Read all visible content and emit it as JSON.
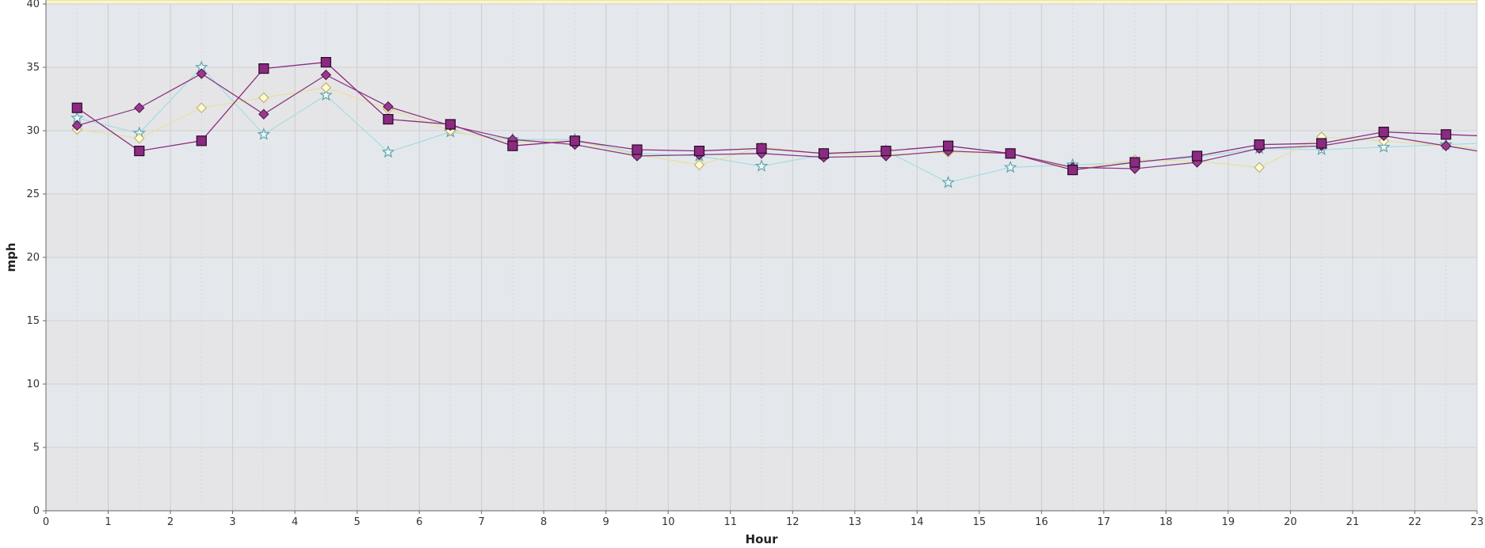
{
  "chart_data": {
    "type": "line",
    "title": "",
    "xlabel": "Hour",
    "ylabel": "mph",
    "xlim": [
      0,
      23
    ],
    "ylim": [
      0,
      40
    ],
    "x_ticks": [
      0,
      1,
      2,
      3,
      4,
      5,
      6,
      7,
      8,
      9,
      10,
      11,
      12,
      13,
      14,
      15,
      16,
      17,
      18,
      19,
      20,
      21,
      22,
      23
    ],
    "y_ticks": [
      0,
      5,
      10,
      15,
      20,
      25,
      30,
      35,
      40
    ],
    "grid": true,
    "x": [
      0.5,
      1.5,
      2.5,
      3.5,
      4.5,
      5.5,
      6.5,
      7.5,
      8.5,
      9.5,
      10.5,
      11.5,
      12.5,
      13.5,
      14.5,
      15.5,
      16.5,
      17.5,
      18.5,
      19.5,
      20.5,
      21.5,
      22.5
    ],
    "series": [
      {
        "marker": "star",
        "color": "#7fbcc4",
        "values": [
          31.0,
          29.8,
          35.0,
          29.7,
          32.8,
          28.3,
          29.9,
          29.3,
          29.3,
          28.2,
          28.0,
          27.2,
          28.1,
          28.4,
          25.9,
          27.1,
          27.3,
          27.5,
          27.9,
          28.6,
          28.5,
          28.7,
          28.9
        ]
      },
      {
        "marker": "diamond",
        "color": "#e8e0a0",
        "values": [
          30.1,
          29.4,
          31.8,
          32.6,
          33.4,
          31.7,
          30.0,
          29.1,
          29.2,
          28.1,
          27.3,
          28.7,
          28.2,
          28.1,
          28.3,
          28.2,
          27.0,
          27.7,
          27.6,
          27.1,
          29.5,
          29.2,
          28.8
        ]
      },
      {
        "marker": "diamond-filled",
        "color": "#8a2a80",
        "values": [
          30.4,
          31.8,
          34.5,
          31.3,
          34.4,
          31.9,
          30.4,
          29.3,
          28.9,
          28.0,
          28.1,
          28.2,
          27.9,
          28.0,
          28.4,
          28.2,
          27.1,
          27.0,
          27.5,
          28.6,
          28.8,
          29.6,
          28.8
        ]
      },
      {
        "marker": "square",
        "color": "#8a2a80",
        "values": [
          31.8,
          28.4,
          29.2,
          34.9,
          35.4,
          30.9,
          30.5,
          28.8,
          29.2,
          28.5,
          28.4,
          28.6,
          28.2,
          28.4,
          28.8,
          28.2,
          26.9,
          27.5,
          28.0,
          28.9,
          29.0,
          29.9,
          29.7
        ]
      }
    ]
  }
}
